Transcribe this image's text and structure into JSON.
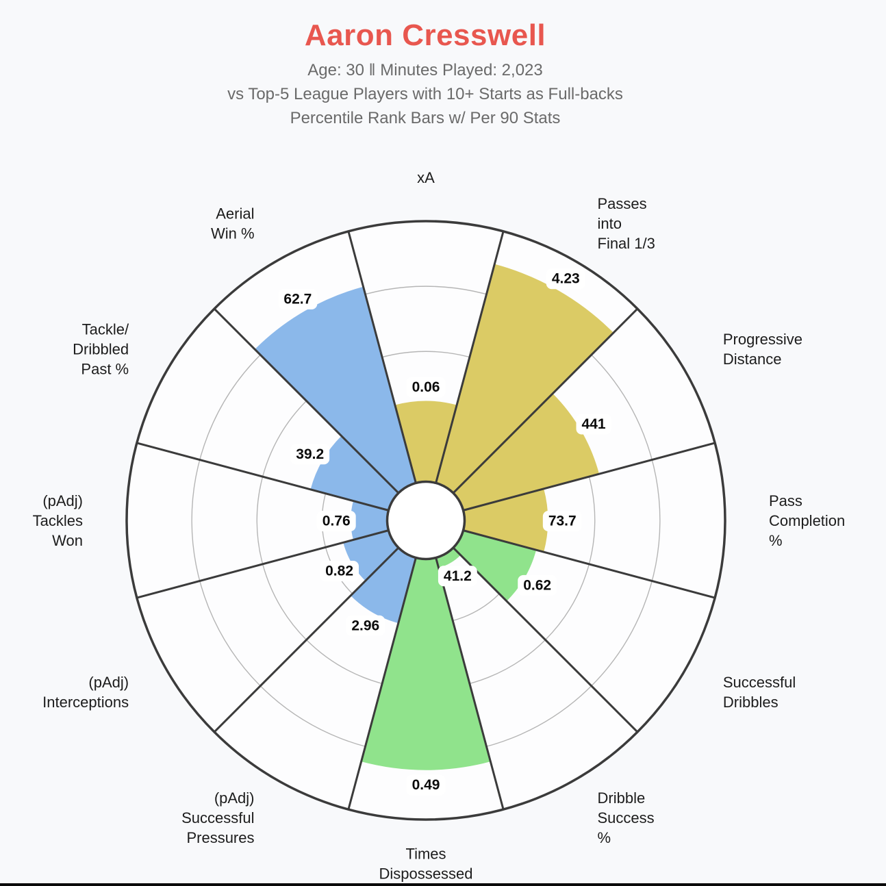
{
  "header": {
    "title": "Aaron Cresswell",
    "subtitle_line1": "Age: 30  ‖  Minutes Played: 2,023",
    "subtitle_line2": "vs Top-5 League Players with 10+ Starts as Full-backs",
    "subtitle_line3": "Percentile Rank Bars w/ Per 90 Stats"
  },
  "colors": {
    "title": "#e8574f",
    "subtitle": "#6a6a6a",
    "param_label": "#1c1c1c",
    "value_text": "#0b0b0b",
    "value_box_bg": "#ffffff",
    "line_dark": "#3b3b3b",
    "grid_ring": "#b5b5b5",
    "chart_bg": "#fdfdfe",
    "page_bg": "#f8f9fb",
    "bottom_bar": "#0a0a0a"
  },
  "chart_data": {
    "type": "pizza-polar-percentile-bar",
    "title": "Aaron Cresswell",
    "subtitle": "Percentile Rank Bars w/ Per 90 Stats vs Top-5 League Players with 10+ Starts as Full-backs",
    "rings_percent": [
      25,
      50,
      75,
      100
    ],
    "percentile_range": [
      0,
      100
    ],
    "groups": [
      {
        "id": "passing",
        "color": "#dbcb65"
      },
      {
        "id": "possession",
        "color": "#90e38c"
      },
      {
        "id": "defending",
        "color": "#8bb8ea"
      }
    ],
    "slices": [
      {
        "label": "xA",
        "lines": [
          "xA"
        ],
        "value": "0.06",
        "percentile": 31,
        "group": "passing"
      },
      {
        "label": "Passes into Final 1/3",
        "lines": [
          "Passes",
          "into",
          "Final 1/3"
        ],
        "value": "4.23",
        "percentile": 87,
        "group": "passing"
      },
      {
        "label": "Progressive Distance",
        "lines": [
          "Progressive",
          "Distance"
        ],
        "value": "441",
        "percentile": 54,
        "group": "passing"
      },
      {
        "label": "Pass Completion %",
        "lines": [
          "Pass",
          "Completion",
          "%"
        ],
        "value": "73.7",
        "percentile": 32,
        "group": "passing"
      },
      {
        "label": "Successful Dribbles",
        "lines": [
          "Successful",
          "Dribbles"
        ],
        "value": "0.62",
        "percentile": 29,
        "group": "possession"
      },
      {
        "label": "Dribble Success %",
        "lines": [
          "Dribble",
          "Success",
          "%"
        ],
        "value": "41.2",
        "percentile": 4,
        "group": "possession"
      },
      {
        "label": "Times Dispossessed",
        "lines": [
          "Times",
          "Dispossessed"
        ],
        "value": "0.49",
        "percentile": 81,
        "group": "possession"
      },
      {
        "label": "(pAdj) Successful Pressures",
        "lines": [
          "(pAdj)",
          "Successful",
          "Pressures"
        ],
        "value": "2.96",
        "percentile": 26,
        "group": "defending"
      },
      {
        "label": "(pAdj) Interceptions",
        "lines": [
          "(pAdj)",
          "Interceptions"
        ],
        "value": "0.82",
        "percentile": 18,
        "group": "defending"
      },
      {
        "label": "(pAdj) Tackles Won",
        "lines": [
          "(pAdj)",
          "Tackles",
          "Won"
        ],
        "value": "0.76",
        "percentile": 14,
        "group": "defending"
      },
      {
        "label": "Tackle/ Dribbled Past %",
        "lines": [
          "Tackle/",
          "Dribbled",
          "Past %"
        ],
        "value": "39.2",
        "percentile": 31,
        "group": "defending"
      },
      {
        "label": "Aerial Win %",
        "lines": [
          "Aerial",
          "Win %"
        ],
        "value": "62.7",
        "percentile": 78,
        "group": "defending"
      }
    ]
  }
}
